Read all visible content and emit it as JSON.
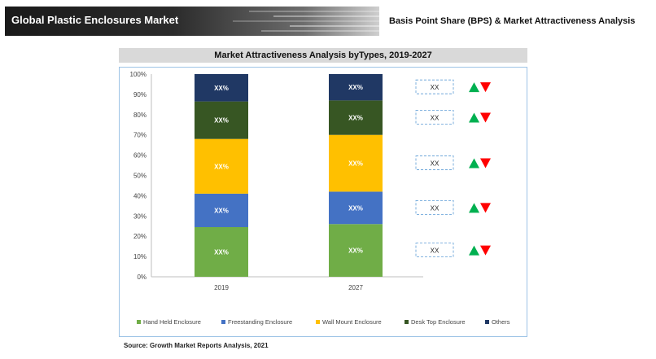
{
  "header": {
    "title": "Global Plastic Enclosures Market",
    "subtitle": "Basis Point Share (BPS) & Market Attractiveness Analysis"
  },
  "chart_header": "Market Attractiveness Analysis byTypes, 2019-2027",
  "source": "Source: Growth Market Reports Analysis, 2021",
  "colors": {
    "Hand Held Enclosure": "#70ad47",
    "Freestanding Enclosure": "#4472c4",
    "Wall Mount Enclosure": "#ffc000",
    "Desk Top Enclosure": "#375623",
    "Others": "#203864",
    "up_arrow": "#00b050",
    "down_arrow": "#ff0000"
  },
  "chart_data": {
    "type": "bar",
    "stacked": true,
    "title": "Market Attractiveness Analysis byTypes, 2019-2027",
    "categories": [
      "2019",
      "2027"
    ],
    "ylim": [
      0,
      100
    ],
    "yticks": [
      "0%",
      "10%",
      "20%",
      "30%",
      "40%",
      "50%",
      "60%",
      "70%",
      "80%",
      "90%",
      "100%"
    ],
    "series": [
      {
        "name": "Hand Held Enclosure",
        "values": [
          24.5,
          26
        ],
        "labels": [
          "XX%",
          "XX%"
        ]
      },
      {
        "name": "Freestanding Enclosure",
        "values": [
          16.5,
          16
        ],
        "labels": [
          "XX%",
          "XX%"
        ]
      },
      {
        "name": "Wall Mount Enclosure",
        "values": [
          27,
          28
        ],
        "labels": [
          "XX%",
          "XX%"
        ]
      },
      {
        "name": "Desk Top Enclosure",
        "values": [
          18.5,
          17
        ],
        "labels": [
          "XX%",
          "XX%"
        ]
      },
      {
        "name": "Others",
        "values": [
          13.5,
          13
        ],
        "labels": [
          "XX%",
          "XX%"
        ]
      }
    ],
    "legend_position": "bottom",
    "grid": false
  },
  "bps_boxes": [
    "XX",
    "XX",
    "XX",
    "XX",
    "XX"
  ]
}
